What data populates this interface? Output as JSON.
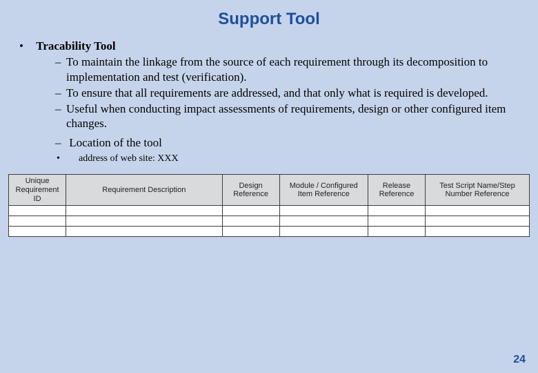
{
  "title": "Support Tool",
  "main_bullet": "Tracability Tool",
  "sub_bullets_a": [
    "To maintain the linkage from the source of each requirement through its decomposition to implementation and test (verification).",
    "To ensure that all requirements are addressed, and that only what is required is developed.",
    "Useful when conducting impact assessments of requirements, design or other configured item changes."
  ],
  "sub_bullet_b": "Location of the tool",
  "sub_sub_bullet": "address of web site: XXX",
  "table": {
    "columns": [
      {
        "label": "Unique Requirement ID",
        "width": "11%"
      },
      {
        "label": "Requirement Description",
        "width": "30%"
      },
      {
        "label": "Design Reference",
        "width": "11%"
      },
      {
        "label": "Module / Configured Item Reference",
        "width": "17%"
      },
      {
        "label": "Release Reference",
        "width": "11%"
      },
      {
        "label": "Test Script Name/Step Number Reference",
        "width": "20%"
      }
    ],
    "body_rows": 3,
    "header_bg": "#d8dadc",
    "border_color": "#3a3d42",
    "cell_bg": "#ffffff"
  },
  "page_number": "24",
  "colors": {
    "slide_bg": "#c6d4eb",
    "title_color": "#1f4e9c",
    "text_color": "#000000"
  }
}
